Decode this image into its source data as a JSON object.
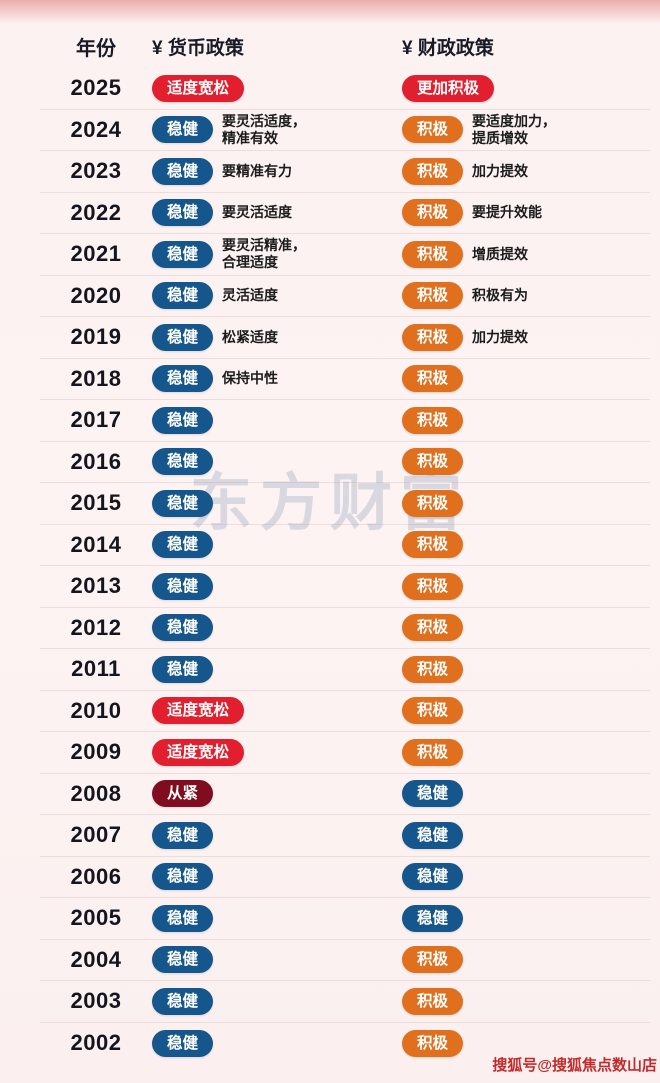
{
  "header": {
    "year_col": "年份",
    "monetary_col": "¥ 货币政策",
    "fiscal_col": "¥ 财政政策"
  },
  "colors": {
    "blue": "#15568c",
    "orange": "#e0701e",
    "red": "#e11f2f",
    "maroon": "#7f0d1f",
    "year_text": "#15151f",
    "note_text": "#1c1c1c",
    "watermark_red": "#c42a2a"
  },
  "watermark": "东方财富",
  "footer_watermark": "搜狐号@搜狐焦点数山店",
  "chart_data": {
    "type": "table",
    "title": "历年货币政策与财政政策",
    "columns": [
      "年份",
      "¥ 货币政策",
      "¥ 财政政策"
    ],
    "legend": {
      "blue": "稳健",
      "orange": "积极",
      "red": "适度宽松/更加积极",
      "maroon": "从紧"
    },
    "rows": [
      {
        "year": "2025",
        "monetary": {
          "label": "适度宽松",
          "color": "red",
          "note": ""
        },
        "fiscal": {
          "label": "更加积极",
          "color": "red",
          "note": ""
        }
      },
      {
        "year": "2024",
        "monetary": {
          "label": "稳健",
          "color": "blue",
          "note": "要灵活适度，\n精准有效"
        },
        "fiscal": {
          "label": "积极",
          "color": "orange",
          "note": "要适度加力，\n提质增效"
        }
      },
      {
        "year": "2023",
        "monetary": {
          "label": "稳健",
          "color": "blue",
          "note": "要精准有力"
        },
        "fiscal": {
          "label": "积极",
          "color": "orange",
          "note": "加力提效"
        }
      },
      {
        "year": "2022",
        "monetary": {
          "label": "稳健",
          "color": "blue",
          "note": "要灵活适度"
        },
        "fiscal": {
          "label": "积极",
          "color": "orange",
          "note": "要提升效能"
        }
      },
      {
        "year": "2021",
        "monetary": {
          "label": "稳健",
          "color": "blue",
          "note": "要灵活精准，\n合理适度"
        },
        "fiscal": {
          "label": "积极",
          "color": "orange",
          "note": "增质提效"
        }
      },
      {
        "year": "2020",
        "monetary": {
          "label": "稳健",
          "color": "blue",
          "note": "灵活适度"
        },
        "fiscal": {
          "label": "积极",
          "color": "orange",
          "note": "积极有为"
        }
      },
      {
        "year": "2019",
        "monetary": {
          "label": "稳健",
          "color": "blue",
          "note": "松紧适度"
        },
        "fiscal": {
          "label": "积极",
          "color": "orange",
          "note": "加力提效"
        }
      },
      {
        "year": "2018",
        "monetary": {
          "label": "稳健",
          "color": "blue",
          "note": "保持中性"
        },
        "fiscal": {
          "label": "积极",
          "color": "orange",
          "note": ""
        }
      },
      {
        "year": "2017",
        "monetary": {
          "label": "稳健",
          "color": "blue",
          "note": ""
        },
        "fiscal": {
          "label": "积极",
          "color": "orange",
          "note": ""
        }
      },
      {
        "year": "2016",
        "monetary": {
          "label": "稳健",
          "color": "blue",
          "note": ""
        },
        "fiscal": {
          "label": "积极",
          "color": "orange",
          "note": ""
        }
      },
      {
        "year": "2015",
        "monetary": {
          "label": "稳健",
          "color": "blue",
          "note": ""
        },
        "fiscal": {
          "label": "积极",
          "color": "orange",
          "note": ""
        }
      },
      {
        "year": "2014",
        "monetary": {
          "label": "稳健",
          "color": "blue",
          "note": ""
        },
        "fiscal": {
          "label": "积极",
          "color": "orange",
          "note": ""
        }
      },
      {
        "year": "2013",
        "monetary": {
          "label": "稳健",
          "color": "blue",
          "note": ""
        },
        "fiscal": {
          "label": "积极",
          "color": "orange",
          "note": ""
        }
      },
      {
        "year": "2012",
        "monetary": {
          "label": "稳健",
          "color": "blue",
          "note": ""
        },
        "fiscal": {
          "label": "积极",
          "color": "orange",
          "note": ""
        }
      },
      {
        "year": "2011",
        "monetary": {
          "label": "稳健",
          "color": "blue",
          "note": ""
        },
        "fiscal": {
          "label": "积极",
          "color": "orange",
          "note": ""
        }
      },
      {
        "year": "2010",
        "monetary": {
          "label": "适度宽松",
          "color": "red",
          "note": ""
        },
        "fiscal": {
          "label": "积极",
          "color": "orange",
          "note": ""
        }
      },
      {
        "year": "2009",
        "monetary": {
          "label": "适度宽松",
          "color": "red",
          "note": ""
        },
        "fiscal": {
          "label": "积极",
          "color": "orange",
          "note": ""
        }
      },
      {
        "year": "2008",
        "monetary": {
          "label": "从紧",
          "color": "maroon",
          "note": ""
        },
        "fiscal": {
          "label": "稳健",
          "color": "blue",
          "note": ""
        }
      },
      {
        "year": "2007",
        "monetary": {
          "label": "稳健",
          "color": "blue",
          "note": ""
        },
        "fiscal": {
          "label": "稳健",
          "color": "blue",
          "note": ""
        }
      },
      {
        "year": "2006",
        "monetary": {
          "label": "稳健",
          "color": "blue",
          "note": ""
        },
        "fiscal": {
          "label": "稳健",
          "color": "blue",
          "note": ""
        }
      },
      {
        "year": "2005",
        "monetary": {
          "label": "稳健",
          "color": "blue",
          "note": ""
        },
        "fiscal": {
          "label": "稳健",
          "color": "blue",
          "note": ""
        }
      },
      {
        "year": "2004",
        "monetary": {
          "label": "稳健",
          "color": "blue",
          "note": ""
        },
        "fiscal": {
          "label": "积极",
          "color": "orange",
          "note": ""
        }
      },
      {
        "year": "2003",
        "monetary": {
          "label": "稳健",
          "color": "blue",
          "note": ""
        },
        "fiscal": {
          "label": "积极",
          "color": "orange",
          "note": ""
        }
      },
      {
        "year": "2002",
        "monetary": {
          "label": "稳健",
          "color": "blue",
          "note": ""
        },
        "fiscal": {
          "label": "积极",
          "color": "orange",
          "note": ""
        }
      }
    ]
  }
}
